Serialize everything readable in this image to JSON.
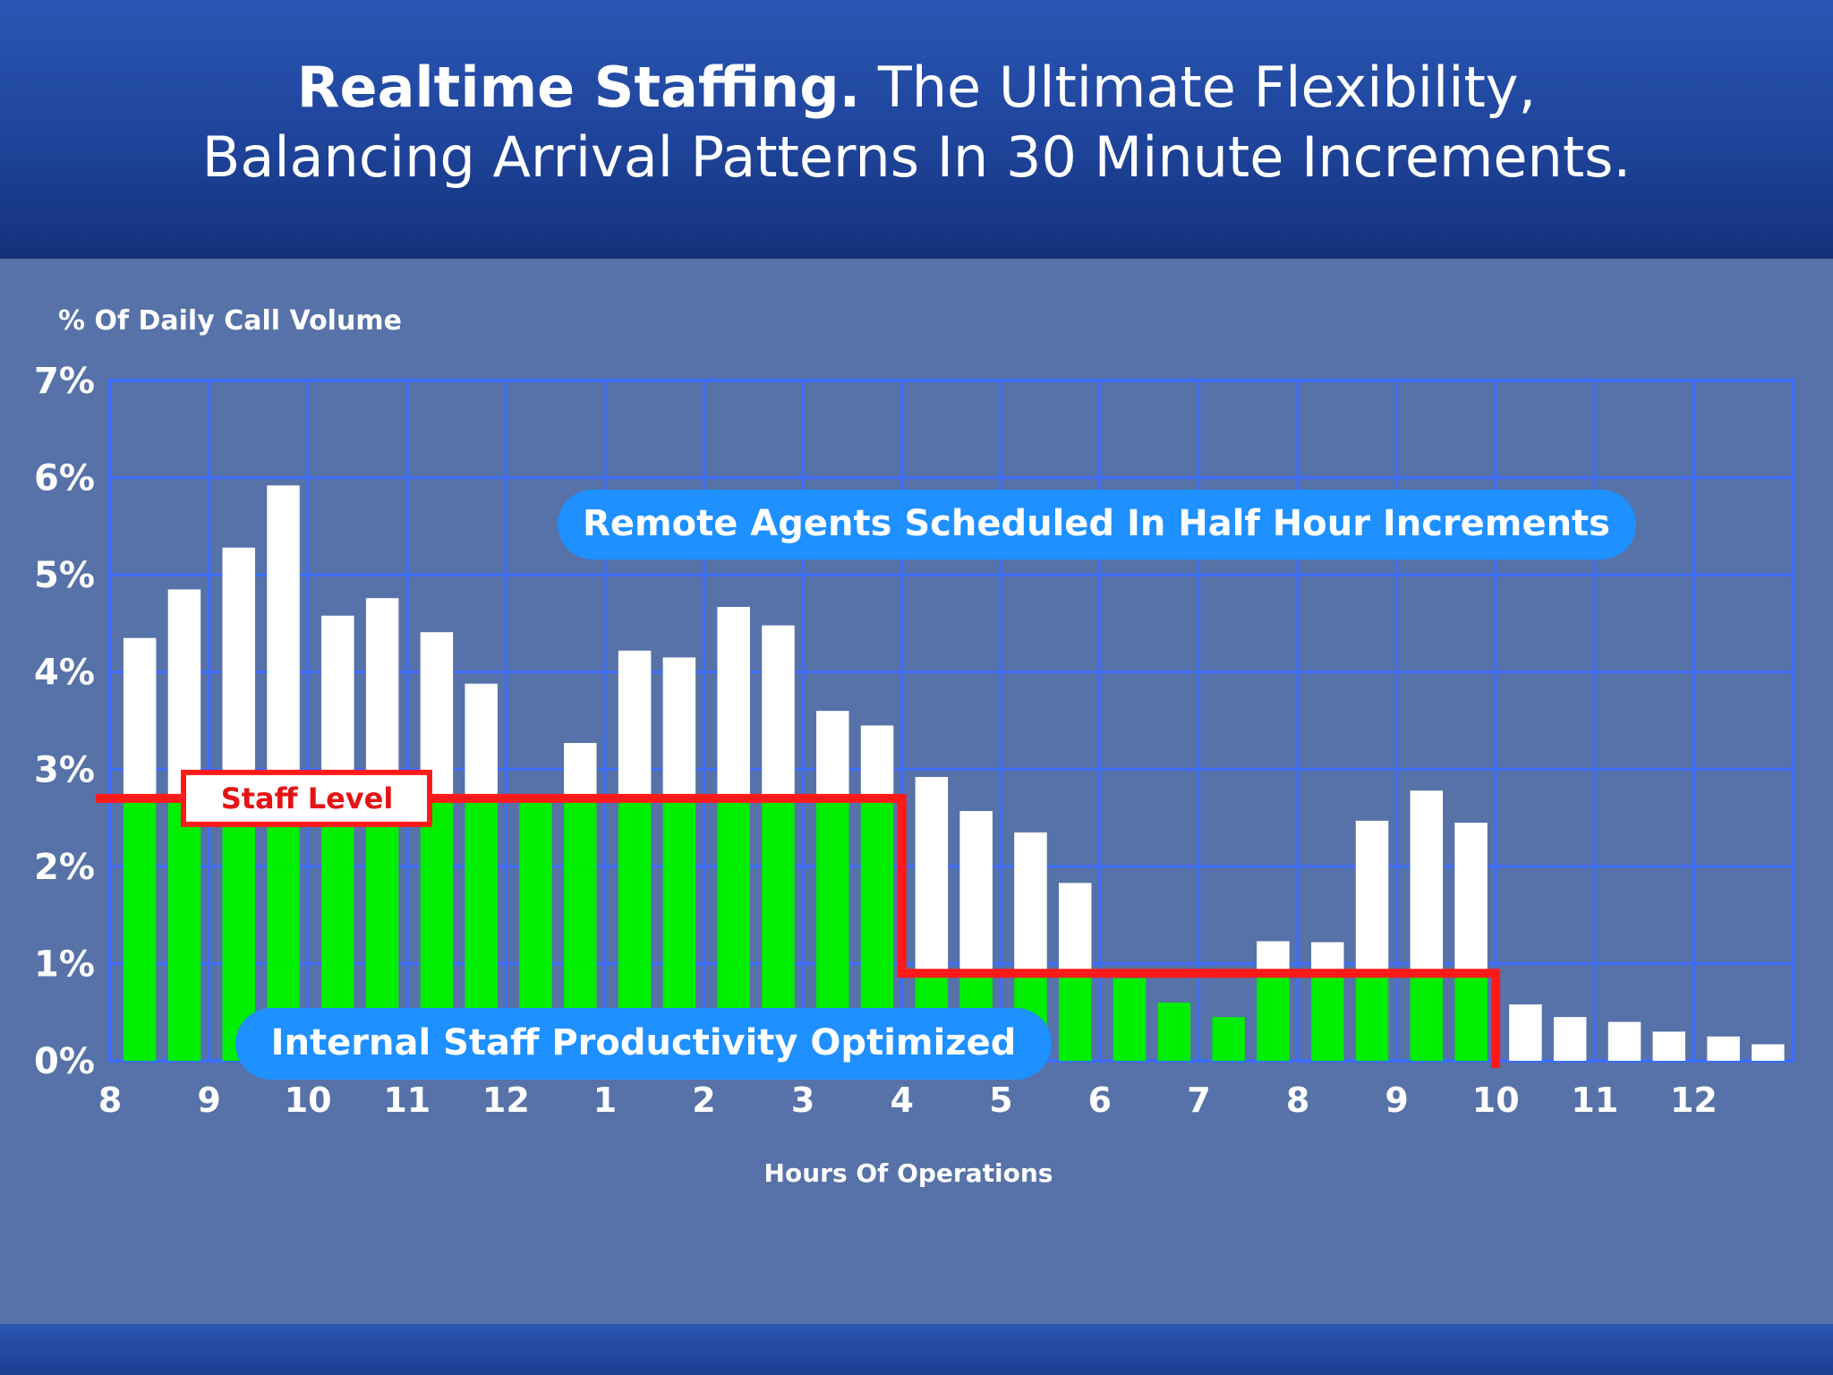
{
  "header": {
    "title_bold": "Realtime Staffing.",
    "title_rest": "The Ultimate Flexibility,",
    "title_line2": "Balancing Arrival Patterns In 30 Minute Increments."
  },
  "colors": {
    "header_blue": "#1e449a",
    "panel_blue": "#5672a8",
    "grid_blue": "#3d6dff",
    "bar_white": "#ffffff",
    "bar_green": "#00ee00",
    "staff_line_red": "#ff1a1a",
    "callout_blue": "#1e90ff"
  },
  "chart_data": {
    "type": "bar",
    "ylabel": "% Of Daily Call Volume",
    "xlabel": "Hours Of Operations",
    "ylim": [
      0,
      7
    ],
    "y_ticks": [
      "0%",
      "1%",
      "2%",
      "3%",
      "4%",
      "5%",
      "6%",
      "7%"
    ],
    "x_tick_labels": [
      "8",
      "9",
      "10",
      "11",
      "12",
      "1",
      "2",
      "3",
      "4",
      "5",
      "6",
      "7",
      "8",
      "9",
      "10",
      "11",
      "12"
    ],
    "grid": true,
    "interval": "30 minutes",
    "call_volume": [
      4.35,
      4.85,
      5.28,
      5.92,
      4.58,
      4.76,
      4.41,
      3.88,
      2.7,
      3.27,
      4.22,
      4.15,
      4.67,
      4.48,
      3.6,
      3.45,
      2.92,
      2.57,
      2.35,
      1.83,
      0.85,
      0.6,
      0.45,
      1.23,
      1.22,
      2.47,
      2.78,
      2.45,
      0.58,
      0.45,
      0.4,
      0.3,
      0.25,
      0.17
    ],
    "staff_level": [
      {
        "from": "8",
        "to": "4",
        "value": 2.7
      },
      {
        "from": "4",
        "to": "10",
        "value": 0.9
      }
    ],
    "annotations": {
      "staff_label": "Staff Level",
      "remote_agents": "Remote Agents Scheduled In Half Hour Increments",
      "internal_staff": "Internal Staff Productivity Optimized"
    }
  }
}
